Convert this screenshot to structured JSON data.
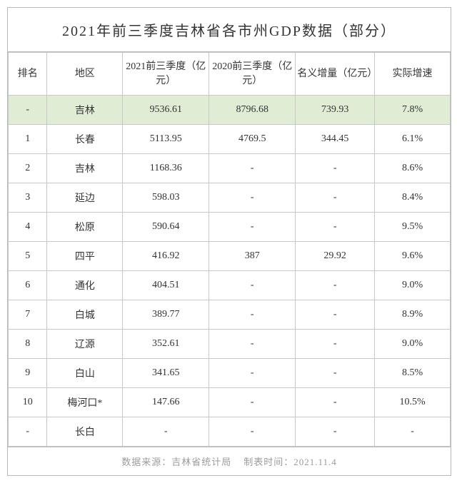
{
  "title": "2021年前三季度吉林省各市州GDP数据（部分）",
  "columns": {
    "rank": "排名",
    "region": "地区",
    "gdp2021": "2021前三季度（亿元）",
    "gdp2020": "2020前三季度（亿元）",
    "nominal": "名义增量（亿元）",
    "real": "实际增速"
  },
  "rows": [
    {
      "rank": "-",
      "region": "吉林",
      "gdp2021": "9536.61",
      "gdp2020": "8796.68",
      "nominal": "739.93",
      "real": "7.8%",
      "highlight": true
    },
    {
      "rank": "1",
      "region": "长春",
      "gdp2021": "5113.95",
      "gdp2020": "4769.5",
      "nominal": "344.45",
      "real": "6.1%"
    },
    {
      "rank": "2",
      "region": "吉林",
      "gdp2021": "1168.36",
      "gdp2020": "-",
      "nominal": "-",
      "real": "8.6%"
    },
    {
      "rank": "3",
      "region": "延边",
      "gdp2021": "598.03",
      "gdp2020": "-",
      "nominal": "-",
      "real": "8.4%"
    },
    {
      "rank": "4",
      "region": "松原",
      "gdp2021": "590.64",
      "gdp2020": "-",
      "nominal": "-",
      "real": "9.5%"
    },
    {
      "rank": "5",
      "region": "四平",
      "gdp2021": "416.92",
      "gdp2020": "387",
      "nominal": "29.92",
      "real": "9.6%"
    },
    {
      "rank": "6",
      "region": "通化",
      "gdp2021": "404.51",
      "gdp2020": "-",
      "nominal": "-",
      "real": "9.0%"
    },
    {
      "rank": "7",
      "region": "白城",
      "gdp2021": "389.77",
      "gdp2020": "-",
      "nominal": "-",
      "real": "8.9%"
    },
    {
      "rank": "8",
      "region": "辽源",
      "gdp2021": "352.61",
      "gdp2020": "-",
      "nominal": "-",
      "real": "9.0%"
    },
    {
      "rank": "9",
      "region": "白山",
      "gdp2021": "341.65",
      "gdp2020": "-",
      "nominal": "-",
      "real": "8.5%"
    },
    {
      "rank": "10",
      "region": "梅河口*",
      "gdp2021": "147.66",
      "gdp2020": "-",
      "nominal": "-",
      "real": "10.5%"
    },
    {
      "rank": "-",
      "region": "长白",
      "gdp2021": "-",
      "gdp2020": "-",
      "nominal": "-",
      "real": "-"
    }
  ],
  "footer": {
    "source_label": "数据来源：",
    "source_value": "吉林省统计局",
    "time_label": "制表时间：",
    "time_value": "2021.11.4"
  },
  "colors": {
    "border": "#b8b8b8",
    "cell_border": "#c8c8c8",
    "highlight_bg": "#e0edd4",
    "footer_text": "#9c9c9c",
    "text": "#333333"
  }
}
